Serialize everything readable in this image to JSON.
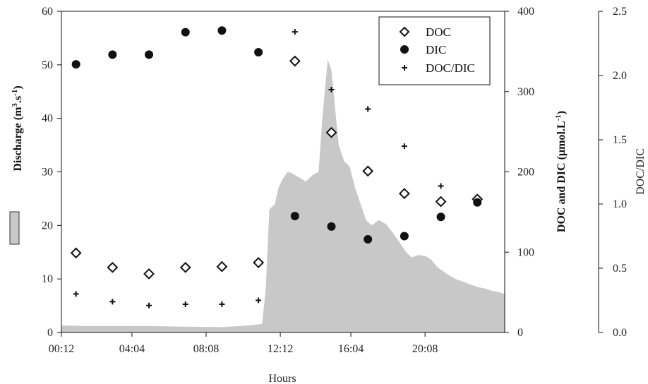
{
  "chart_data": {
    "type": "scatter",
    "xlabel": "Hours",
    "x_ticks": [
      "00:12",
      "04:04",
      "08:08",
      "12:12",
      "16:04",
      "20:08"
    ],
    "x_ticks_hours": [
      0.2,
      4.067,
      8.133,
      12.2,
      16.067,
      20.133
    ],
    "xlim_hours": [
      0.2,
      24.5
    ],
    "y_left": {
      "label": "Discharge (m³.s⁻¹)",
      "label_parts": {
        "pre": "Discharge (m",
        "sup1": "3",
        "mid": ".s",
        "sup2": "-1",
        "post": ")"
      },
      "ylim": [
        0,
        60
      ],
      "ticks": [
        0,
        10,
        20,
        30,
        40,
        50,
        60
      ]
    },
    "y_right1": {
      "label": "DOC and DIC (µmol.L⁻¹)",
      "label_parts": {
        "pre": "DOC and DIC (µmol.L",
        "sup": "-1",
        "post": ")"
      },
      "ylim": [
        0,
        400
      ],
      "ticks": [
        0,
        100,
        200,
        300,
        400
      ]
    },
    "y_right2": {
      "label": "DOC/DIC",
      "ylim": [
        0,
        2.5
      ],
      "ticks": [
        "0.0",
        "0.5",
        "1.0",
        "1.5",
        "2.0",
        "2.5"
      ]
    },
    "legend": {
      "position": "top-right",
      "entries": [
        {
          "name": "DOC",
          "marker": "diamond-open"
        },
        {
          "name": "DIC",
          "marker": "circle-filled"
        },
        {
          "name": "DOC/DIC",
          "marker": "plus"
        }
      ]
    },
    "discharge_area": {
      "name": "Discharge",
      "color": "#c8c8c8",
      "x": [
        0.2,
        1.5,
        3.0,
        5.0,
        7.0,
        9.0,
        10.5,
        11.2,
        11.4,
        11.6,
        11.9,
        12.1,
        12.3,
        12.6,
        12.8,
        13.2,
        13.6,
        14.0,
        14.3,
        14.5,
        14.8,
        15.0,
        15.4,
        15.7,
        16.0,
        16.3,
        16.6,
        16.9,
        17.2,
        17.6,
        18.0,
        18.4,
        18.8,
        19.1,
        19.4,
        19.8,
        20.2,
        20.5,
        20.8,
        21.1,
        21.4,
        21.8,
        22.2,
        22.6,
        23.0,
        23.4,
        23.8,
        24.2,
        24.5
      ],
      "values": [
        1.3,
        1.2,
        1.2,
        1.2,
        1.1,
        1.0,
        1.3,
        1.6,
        8.0,
        23.0,
        24.0,
        27.0,
        28.5,
        30.0,
        29.8,
        29.0,
        28.2,
        29.5,
        30.0,
        40.0,
        51.0,
        49.0,
        35.0,
        32.0,
        31.0,
        27.0,
        24.0,
        21.0,
        20.0,
        21.0,
        20.2,
        18.5,
        16.5,
        15.0,
        14.0,
        14.5,
        14.2,
        13.5,
        12.2,
        11.5,
        10.8,
        10.0,
        9.5,
        9.0,
        8.5,
        8.2,
        7.8,
        7.5,
        7.2
      ]
    },
    "series": [
      {
        "name": "DOC",
        "axis": "DOC and DIC",
        "marker": "diamond-open",
        "x": [
          1.0,
          3.0,
          5.0,
          7.0,
          9.0,
          11.0,
          13.0,
          15.0,
          17.0,
          19.0,
          21.0,
          23.0
        ],
        "values": [
          99,
          81,
          73,
          81,
          82,
          87,
          338,
          249,
          201,
          173,
          163,
          166
        ]
      },
      {
        "name": "DIC",
        "axis": "DOC and DIC",
        "marker": "circle-filled",
        "x": [
          1.0,
          3.0,
          5.0,
          7.0,
          9.0,
          11.0,
          13.0,
          15.0,
          17.0,
          19.0,
          21.0,
          23.0
        ],
        "values": [
          334,
          346,
          346,
          374,
          376,
          349,
          145,
          132,
          116,
          120,
          144,
          162
        ]
      },
      {
        "name": "DOC/DIC",
        "axis": "DOC/DIC",
        "marker": "plus",
        "x": [
          1.0,
          3.0,
          5.0,
          7.0,
          9.0,
          11.0,
          13.0,
          15.0,
          17.0,
          19.0,
          21.0
        ],
        "values": [
          0.3,
          0.24,
          0.21,
          0.22,
          0.22,
          0.25,
          2.34,
          1.89,
          1.74,
          1.45,
          1.14
        ]
      }
    ]
  }
}
